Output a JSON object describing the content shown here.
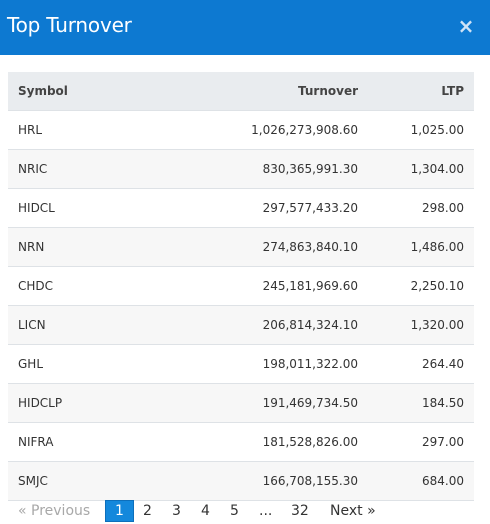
{
  "header": {
    "title": "Top Turnover",
    "close_glyph": "×"
  },
  "table": {
    "columns": [
      "Symbol",
      "Turnover",
      "LTP"
    ],
    "rows": [
      [
        "HRL",
        "1,026,273,908.60",
        "1,025.00"
      ],
      [
        "NRIC",
        "830,365,991.30",
        "1,304.00"
      ],
      [
        "HIDCL",
        "297,577,433.20",
        "298.00"
      ],
      [
        "NRN",
        "274,863,840.10",
        "1,486.00"
      ],
      [
        "CHDC",
        "245,181,969.60",
        "2,250.10"
      ],
      [
        "LICN",
        "206,814,324.10",
        "1,320.00"
      ],
      [
        "GHL",
        "198,011,322.00",
        "264.40"
      ],
      [
        "HIDCLP",
        "191,469,734.50",
        "184.50"
      ],
      [
        "NIFRA",
        "181,528,826.00",
        "297.00"
      ],
      [
        "SMJC",
        "166,708,155.30",
        "684.00"
      ]
    ]
  },
  "pagination": {
    "prev": "«  Previous",
    "pages": [
      "1",
      "2",
      "3",
      "4",
      "5"
    ],
    "ellipsis": "...",
    "last": "32",
    "next": "Next  »",
    "active": "1"
  },
  "colors": {
    "header_bg": "#0d79d1",
    "active_page": "#1488dc"
  }
}
